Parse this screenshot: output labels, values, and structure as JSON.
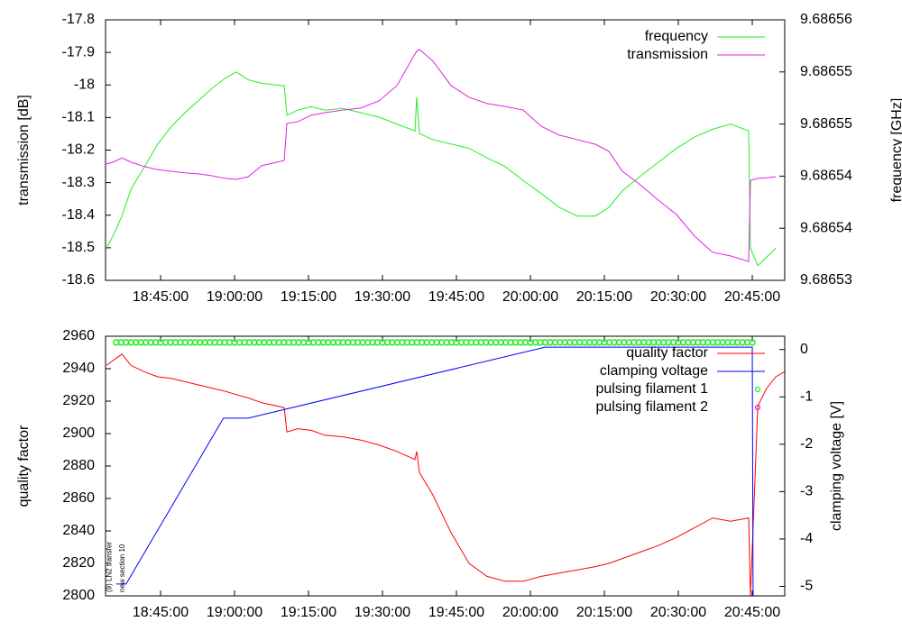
{
  "chart_data": [
    {
      "type": "line",
      "xlim": [
        "18:33:50",
        "20:51:35"
      ],
      "xticks": [
        "18:45:00",
        "19:00:00",
        "19:15:00",
        "19:30:00",
        "19:45:00",
        "20:00:00",
        "20:15:00",
        "20:30:00",
        "20:45:00"
      ],
      "ylabel": "transmission [dB]",
      "y2label": "frequency [GHz]",
      "ylim": [
        -18.6,
        -17.8
      ],
      "yticks": [
        -18.6,
        -18.5,
        -18.4,
        -18.3,
        -18.2,
        -18.1,
        -18,
        -17.9,
        -17.8
      ],
      "y2lim": [
        9.68653,
        9.68656
      ],
      "y2ticks": [
        9.68653,
        {
          "value": 9.686536,
          "label": "9.68654"
        },
        {
          "value": 9.686542,
          "label": "9.68654"
        },
        {
          "value": 9.686548,
          "label": "9.68655"
        },
        {
          "value": 9.686554,
          "label": "9.68655"
        },
        9.68656
      ],
      "legend": "upper right",
      "x": [
        "18:34:00",
        "18:35:20",
        "18:37:10",
        "18:39:00",
        "18:41:45",
        "18:44:25",
        "18:47:10",
        "18:49:55",
        "18:52:40",
        "18:55:25",
        "18:58:10",
        "19:00:22",
        "19:02:45",
        "19:05:30",
        "19:10:04",
        "19:10:37",
        "19:12:49",
        "19:15:33",
        "19:18:18",
        "19:21:57",
        "19:25:37",
        "19:29:16",
        "19:32:56",
        "19:36:35",
        "19:36:57",
        "19:37:30",
        "19:40:15",
        "19:43:54",
        "19:47:34",
        "19:51:13",
        "19:54:53",
        "19:58:32",
        "20:02:12",
        "20:05:51",
        "20:09:31",
        "20:13:10",
        "20:15:55",
        "20:18:39",
        "20:22:19",
        "20:25:58",
        "20:29:38",
        "20:33:17",
        "20:36:57",
        "20:40:36",
        "20:44:16",
        "20:44:38",
        "20:46:07",
        "20:47:57",
        "20:49:46"
      ],
      "series": [
        {
          "name": "frequency",
          "color": "#22ee22",
          "axis": "y2",
          "style": "line",
          "values": [
            9.6865337,
            9.6865351,
            9.6865374,
            9.6865405,
            9.6865431,
            9.6865457,
            9.6865477,
            9.6865493,
            9.6865507,
            9.6865521,
            9.6865533,
            9.686554,
            9.6865531,
            9.6865527,
            9.6865524,
            9.686549,
            9.6865496,
            9.68655,
            9.6865496,
            9.6865498,
            9.6865493,
            9.6865488,
            9.686548,
            9.6865472,
            9.6865511,
            9.6865469,
            9.6865462,
            9.6865457,
            9.6865452,
            9.6865441,
            9.6865431,
            9.6865415,
            9.68654,
            9.6865384,
            9.6865374,
            9.6865374,
            9.6865384,
            9.6865403,
            9.686542,
            9.6865436,
            9.6865452,
            9.6865465,
            9.6865474,
            9.686548,
            9.6865472,
            9.6865337,
            9.6865317,
            9.6865327,
            9.6865337
          ]
        },
        {
          "name": "transmission",
          "color": "#e020e0",
          "style": "line",
          "values": [
            -18.243,
            -18.237,
            -18.224,
            -18.237,
            -18.251,
            -18.26,
            -18.265,
            -18.27,
            -18.273,
            -18.279,
            -18.287,
            -18.29,
            -18.282,
            -18.248,
            -18.232,
            -18.118,
            -18.113,
            -18.093,
            -18.085,
            -18.077,
            -18.071,
            -18.049,
            -18.002,
            -17.905,
            -17.897,
            -17.891,
            -17.927,
            -18.002,
            -18.038,
            -18.057,
            -18.066,
            -18.077,
            -18.127,
            -18.154,
            -18.168,
            -18.182,
            -18.204,
            -18.265,
            -18.307,
            -18.354,
            -18.398,
            -18.464,
            -18.514,
            -18.525,
            -18.542,
            -18.293,
            -18.287,
            -18.285,
            -18.282
          ]
        }
      ]
    },
    {
      "type": "line",
      "xlim": [
        "18:33:50",
        "20:51:35"
      ],
      "xticks": [
        "18:45:00",
        "19:00:00",
        "19:15:00",
        "19:30:00",
        "19:45:00",
        "20:00:00",
        "20:15:00",
        "20:30:00",
        "20:45:00"
      ],
      "ylabel": "quality factor",
      "y2label": "clamping voltage [V]",
      "ylim": [
        2800,
        2960
      ],
      "yticks": [
        2800,
        2820,
        2840,
        2860,
        2880,
        2900,
        2920,
        2940,
        2960
      ],
      "y2lim": [
        -5.2,
        0.28
      ],
      "y2ticks": [
        -5,
        -4,
        -3,
        -2,
        -1,
        0
      ],
      "legend": "upper right",
      "annotations": [
        {
          "text": "(9) LN2 transfer",
          "x": "18:34:40"
        },
        {
          "text": "new section 10",
          "x": "18:37:20"
        }
      ],
      "series": [
        {
          "name": "quality factor",
          "color": "#ff0000",
          "style": "line",
          "x": [
            "18:34:00",
            "18:35:20",
            "18:37:10",
            "18:39:00",
            "18:41:45",
            "18:44:25",
            "18:47:10",
            "18:49:55",
            "18:52:40",
            "18:55:25",
            "18:58:10",
            "19:00:22",
            "19:02:45",
            "19:05:30",
            "19:10:04",
            "19:10:37",
            "19:12:49",
            "19:15:33",
            "19:18:18",
            "19:21:57",
            "19:25:37",
            "19:29:16",
            "19:32:56",
            "19:36:35",
            "19:36:57",
            "19:37:30",
            "19:40:15",
            "19:43:54",
            "19:47:34",
            "19:51:13",
            "19:54:53",
            "19:58:32",
            "20:02:12",
            "20:05:51",
            "20:09:31",
            "20:13:10",
            "20:15:55",
            "20:18:39",
            "20:22:19",
            "20:25:58",
            "20:29:38",
            "20:33:17",
            "20:36:57",
            "20:40:36",
            "20:44:16",
            "20:44:38",
            "20:46:07",
            "20:47:57",
            "20:49:46",
            "20:51:30"
          ],
          "values": [
            2942,
            2945,
            2949,
            2942,
            2938,
            2935,
            2934,
            2932,
            2930,
            2928,
            2926,
            2924,
            2922,
            2919,
            2916,
            2901,
            2903,
            2902,
            2899,
            2898,
            2896,
            2893,
            2889,
            2884,
            2889,
            2876,
            2862,
            2839,
            2820,
            2812,
            2809,
            2809,
            2812,
            2814,
            2816,
            2818,
            2820,
            2823,
            2827,
            2831,
            2836,
            2842,
            2848,
            2846,
            2848,
            2800,
            2917,
            2928,
            2935,
            2938
          ]
        },
        {
          "name": "clamping voltage",
          "color": "#0000ff",
          "axis": "y2",
          "style": "line",
          "x": [
            "18:36:00",
            "18:38:00",
            "18:57:45",
            "19:02:45",
            "20:03:00",
            "20:45:00",
            "20:45:10"
          ],
          "values": [
            -4.95,
            -4.95,
            -1.45,
            -1.45,
            0.05,
            0.05,
            -5.2
          ]
        },
        {
          "name": "pulsing filament 1",
          "color": "#22ee22",
          "axis": "y2",
          "style": "points",
          "x": [
            "18:36:00",
            "18:37:00",
            "18:38:00",
            "18:39:00",
            "18:40:00",
            "18:41:00",
            "18:42:00",
            "18:43:00",
            "18:44:00",
            "18:45:00",
            "18:46:00",
            "18:47:00",
            "18:48:00",
            "18:49:00",
            "18:50:00",
            "18:51:00",
            "18:52:00",
            "18:53:00",
            "18:54:00",
            "18:55:00",
            "18:56:00",
            "18:57:00",
            "18:58:00",
            "18:59:00",
            "19:00:00",
            "19:01:00",
            "19:02:00",
            "19:03:00",
            "19:04:00",
            "19:05:00",
            "19:06:00",
            "19:07:00",
            "19:08:00",
            "19:09:00",
            "19:10:00",
            "19:11:00",
            "19:12:00",
            "19:13:00",
            "19:14:00",
            "19:15:00",
            "19:16:00",
            "19:17:00",
            "19:18:00",
            "19:19:00",
            "19:20:00",
            "19:21:00",
            "19:22:00",
            "19:23:00",
            "19:24:00",
            "19:25:00",
            "19:26:00",
            "19:27:00",
            "19:28:00",
            "19:29:00",
            "19:30:00",
            "19:31:00",
            "19:32:00",
            "19:33:00",
            "19:34:00",
            "19:35:00",
            "19:36:00",
            "19:37:00",
            "19:38:00",
            "19:39:00",
            "19:40:00",
            "19:41:00",
            "19:42:00",
            "19:43:00",
            "19:44:00",
            "19:45:00",
            "19:46:00",
            "19:47:00",
            "19:48:00",
            "19:49:00",
            "19:50:00",
            "19:51:00",
            "19:52:00",
            "19:53:00",
            "19:54:00",
            "19:55:00",
            "19:56:00",
            "19:57:00",
            "19:58:00",
            "19:59:00",
            "20:00:00",
            "20:01:00",
            "20:02:00",
            "20:03:00",
            "20:04:00",
            "20:05:00",
            "20:06:00",
            "20:07:00",
            "20:08:00",
            "20:09:00",
            "20:10:00",
            "20:11:00",
            "20:12:00",
            "20:13:00",
            "20:14:00",
            "20:15:00",
            "20:16:00",
            "20:17:00",
            "20:18:00",
            "20:19:00",
            "20:20:00",
            "20:21:00",
            "20:22:00",
            "20:23:00",
            "20:24:00",
            "20:25:00",
            "20:26:00",
            "20:27:00",
            "20:28:00",
            "20:29:00",
            "20:30:00",
            "20:31:00",
            "20:32:00",
            "20:33:00",
            "20:34:00",
            "20:35:00",
            "20:36:00",
            "20:37:00",
            "20:38:00",
            "20:39:00",
            "20:40:00",
            "20:41:00",
            "20:42:00",
            "20:43:00",
            "20:44:00",
            "20:45:00"
          ],
          "values": [
            0.15,
            0.15,
            0.15,
            0.15,
            0.15,
            0.15,
            0.15,
            0.15,
            0.15,
            0.15,
            0.15,
            0.15,
            0.15,
            0.15,
            0.15,
            0.15,
            0.15,
            0.15,
            0.15,
            0.15,
            0.15,
            0.15,
            0.15,
            0.15,
            0.15,
            0.15,
            0.15,
            0.15,
            0.15,
            0.15,
            0.15,
            0.15,
            0.15,
            0.15,
            0.15,
            0.15,
            0.15,
            0.15,
            0.15,
            0.15,
            0.15,
            0.15,
            0.15,
            0.15,
            0.15,
            0.15,
            0.15,
            0.15,
            0.15,
            0.15,
            0.15,
            0.15,
            0.15,
            0.15,
            0.15,
            0.15,
            0.15,
            0.15,
            0.15,
            0.15,
            0.15,
            0.15,
            0.15,
            0.15,
            0.15,
            0.15,
            0.15,
            0.15,
            0.15,
            0.15,
            0.15,
            0.15,
            0.15,
            0.15,
            0.15,
            0.15,
            0.15,
            0.15,
            0.15,
            0.15,
            0.15,
            0.15,
            0.15,
            0.15,
            0.15,
            0.15,
            0.15,
            0.15,
            0.15,
            0.15,
            0.15,
            0.15,
            0.15,
            0.15,
            0.15,
            0.15,
            0.15,
            0.15,
            0.15,
            0.15,
            0.15,
            0.15,
            0.15,
            0.15,
            0.15,
            0.15,
            0.15,
            0.15,
            0.15,
            0.15,
            0.15,
            0.15,
            0.15,
            0.15,
            0.15,
            0.15,
            0.15,
            0.15,
            0.15,
            0.15,
            0.15,
            0.15,
            0.15,
            0.15,
            0.15,
            0.15,
            0.15,
            0.15,
            0.15,
            0.15
          ]
        },
        {
          "name": "pulsing filament 2",
          "color": "#e020e0",
          "axis": "y2",
          "style": "points",
          "x": [],
          "values": []
        }
      ]
    }
  ]
}
